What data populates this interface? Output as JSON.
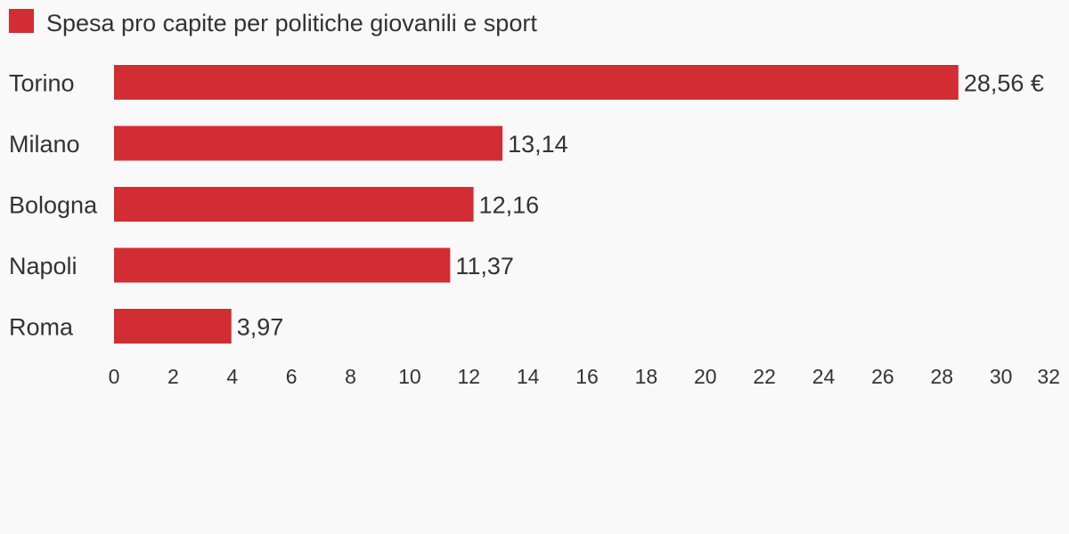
{
  "colors": {
    "background": "#f9f9f9",
    "bar": "#d12d33",
    "text": "#333333"
  },
  "chart_data": {
    "type": "bar",
    "orientation": "horizontal",
    "title": "",
    "xlabel": "",
    "ylabel": "",
    "categories": [
      "Torino",
      "Milano",
      "Bologna",
      "Napoli",
      "Roma"
    ],
    "series": [
      {
        "name": "Spesa pro capite per politiche giovanili e sport",
        "values": [
          28.56,
          13.14,
          12.16,
          11.37,
          3.97
        ],
        "value_labels": [
          "28,56 €",
          "13,14",
          "12,16",
          "11,37",
          "3,97"
        ]
      }
    ],
    "xlim": [
      0,
      32
    ],
    "x_ticks": [
      0,
      2,
      4,
      6,
      8,
      10,
      12,
      14,
      16,
      18,
      20,
      22,
      24,
      26,
      28,
      30,
      32
    ],
    "grid": false,
    "legend": "top-left"
  }
}
